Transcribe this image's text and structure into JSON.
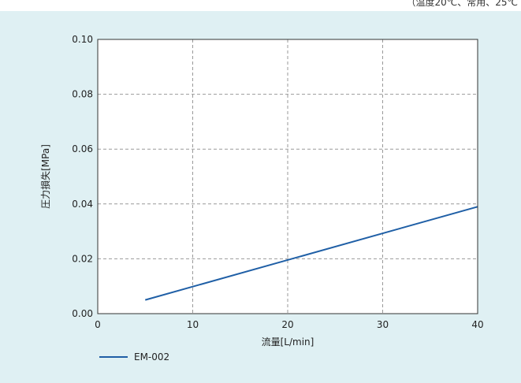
{
  "header": {
    "top_note": "（温度20℃、常用、25℃"
  },
  "colors": {
    "panel_background": "#dff0f3",
    "plot_background": "#ffffff",
    "grid": "#999999",
    "series_line": "#1f5fa6"
  },
  "chart_data": {
    "type": "line",
    "xlabel": "流量[L/min]",
    "ylabel": "圧力損失[MPa]",
    "xlim": [
      0,
      40
    ],
    "ylim": [
      0,
      0.1
    ],
    "x_ticks": [
      "0",
      "10",
      "20",
      "30",
      "40"
    ],
    "y_ticks": [
      "0.00",
      "0.02",
      "0.04",
      "0.06",
      "0.08",
      "0.10"
    ],
    "grid": true,
    "legend_position": "bottom-left",
    "series": [
      {
        "name": "EM-002",
        "x": [
          5,
          40
        ],
        "y": [
          0.005,
          0.039
        ]
      }
    ]
  }
}
